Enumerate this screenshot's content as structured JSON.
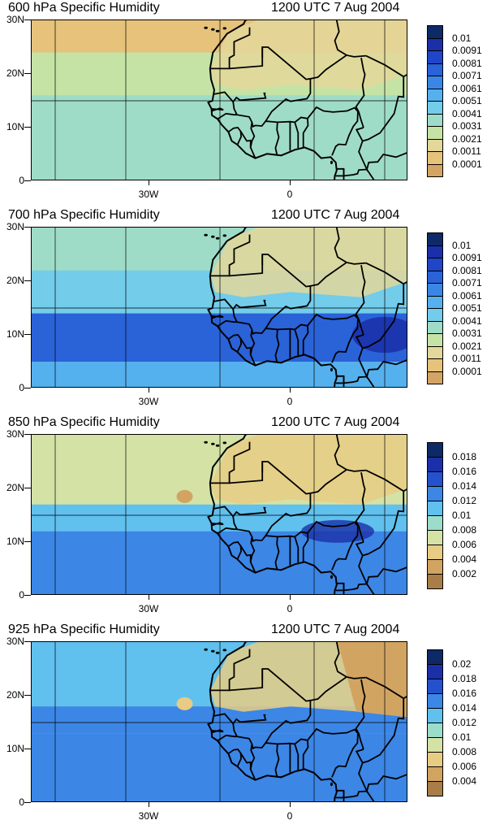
{
  "panels": [
    {
      "title_left": "600 hPa Specific Humidity",
      "title_right": "1200 UTC 7 Aug 2004",
      "y_labels": [
        "30N",
        "20N",
        "10N",
        "0"
      ],
      "x_labels": [
        "30W",
        "0"
      ],
      "legend_labels": [
        "0.01",
        "0.0091",
        "0.0081",
        "0.0071",
        "0.0061",
        "0.0051",
        "0.0041",
        "0.0031",
        "0.0021",
        "0.0011",
        "0.0001"
      ],
      "dominant_fill": "#a9dcc0"
    },
    {
      "title_left": "700 hPa Specific Humidity",
      "title_right": "1200 UTC 7 Aug 2004",
      "y_labels": [
        "30N",
        "20N",
        "10N",
        "0"
      ],
      "x_labels": [
        "30W",
        "0"
      ],
      "legend_labels": [
        "0.01",
        "0.0091",
        "0.0081",
        "0.0071",
        "0.0061",
        "0.0051",
        "0.0041",
        "0.0031",
        "0.0021",
        "0.0011",
        "0.0001"
      ],
      "dominant_fill": "#6cc2e2"
    },
    {
      "title_left": "850 hPa Specific Humidity",
      "title_right": "1200 UTC 7 Aug 2004",
      "y_labels": [
        "30N",
        "20N",
        "10N",
        "0"
      ],
      "x_labels": [
        "30W",
        "0"
      ],
      "legend_labels": [
        "0.018",
        "0.016",
        "0.014",
        "0.012",
        "0.01",
        "0.008",
        "0.006",
        "0.004",
        "0.002"
      ],
      "dominant_fill": "#8fd6cd"
    },
    {
      "title_left": "925 hPa Specific Humidity",
      "title_right": "1200 UTC 7 Aug 2004",
      "y_labels": [
        "30N",
        "20N",
        "10N",
        "0"
      ],
      "x_labels": [
        "30W",
        "0"
      ],
      "legend_labels": [
        "0.02",
        "0.018",
        "0.016",
        "0.014",
        "0.012",
        "0.01",
        "0.008",
        "0.006",
        "0.004"
      ],
      "dominant_fill": "#5bb8e6"
    }
  ],
  "colors": {
    "scale_11": [
      "#0e2a66",
      "#1a2fa8",
      "#1f45c8",
      "#2a62d8",
      "#3a86e6",
      "#55b0ee",
      "#73ccea",
      "#9fdcc8",
      "#c6e3a6",
      "#e3d79a",
      "#e6c27a",
      "#d3a564",
      "#b48a4e"
    ],
    "scale_9": [
      "#0e2a66",
      "#1a2fa8",
      "#2452cc",
      "#3c86e6",
      "#60c0ee",
      "#9cdccb",
      "#d4e2a6",
      "#e8cc84",
      "#d2a462",
      "#a97d48"
    ]
  }
}
